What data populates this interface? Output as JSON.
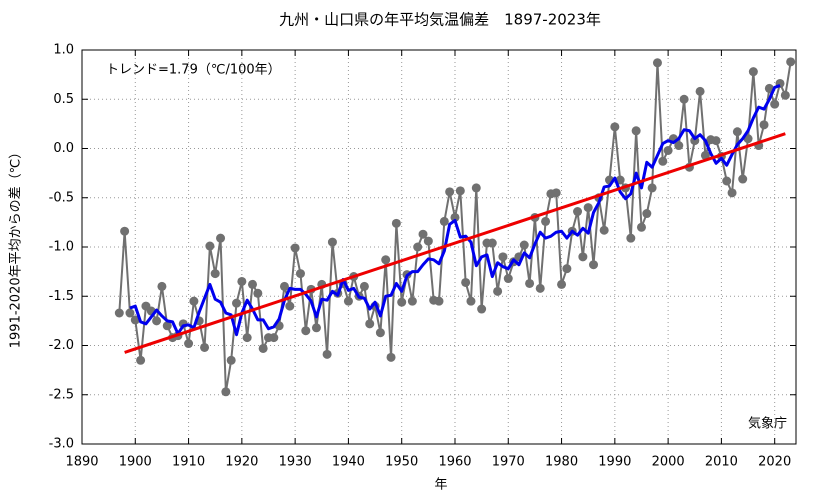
{
  "chart_data": {
    "type": "line",
    "title": "九州・山口県の年平均気温偏差　1897-2023年",
    "xlabel": "年",
    "ylabel": "1991-2020年平均からの差（℃）",
    "annotations": [
      "トレンド=1.79（℃/100年）",
      "気象庁"
    ],
    "xlim": [
      1890,
      2024
    ],
    "ylim": [
      -3.0,
      1.0
    ],
    "xticks": [
      1890,
      1900,
      1910,
      1920,
      1930,
      1940,
      1950,
      1960,
      1970,
      1980,
      1990,
      2000,
      2010,
      2020
    ],
    "yticks": [
      {
        "value": -3,
        "label": "-3.0"
      },
      {
        "value": -2.5,
        "label": "-2.5"
      },
      {
        "value": -2,
        "label": "-2.0"
      },
      {
        "value": -1.5,
        "label": "-1.5"
      },
      {
        "value": -1,
        "label": "-1.0"
      },
      {
        "value": -0.5,
        "label": "-0.5"
      },
      {
        "value": 0,
        "label": "0.0"
      },
      {
        "value": 0.5,
        "label": "0.5"
      },
      {
        "value": 1,
        "label": "1.0"
      }
    ],
    "grid": true,
    "x": [
      1897,
      1898,
      1899,
      1900,
      1901,
      1902,
      1903,
      1904,
      1905,
      1906,
      1907,
      1908,
      1909,
      1910,
      1911,
      1912,
      1913,
      1914,
      1915,
      1916,
      1917,
      1918,
      1919,
      1920,
      1921,
      1922,
      1923,
      1924,
      1925,
      1926,
      1927,
      1928,
      1929,
      1930,
      1931,
      1932,
      1933,
      1934,
      1935,
      1936,
      1937,
      1938,
      1939,
      1940,
      1941,
      1942,
      1943,
      1944,
      1945,
      1946,
      1947,
      1948,
      1949,
      1950,
      1951,
      1952,
      1953,
      1954,
      1955,
      1956,
      1957,
      1958,
      1959,
      1960,
      1961,
      1962,
      1963,
      1964,
      1965,
      1966,
      1967,
      1968,
      1969,
      1970,
      1971,
      1972,
      1973,
      1974,
      1975,
      1976,
      1977,
      1978,
      1979,
      1980,
      1981,
      1982,
      1983,
      1984,
      1985,
      1986,
      1987,
      1988,
      1989,
      1990,
      1991,
      1992,
      1993,
      1994,
      1995,
      1996,
      1997,
      1998,
      1999,
      2000,
      2001,
      2002,
      2003,
      2004,
      2005,
      2006,
      2007,
      2008,
      2009,
      2010,
      2011,
      2012,
      2013,
      2014,
      2015,
      2016,
      2017,
      2018,
      2019,
      2020,
      2021,
      2022,
      2023
    ],
    "series": [
      {
        "color": "#707070",
        "values": [
          -1.67,
          -0.84,
          -1.67,
          -1.74,
          -2.15,
          -1.6,
          -1.65,
          -1.75,
          -1.4,
          -1.8,
          -1.92,
          -1.9,
          -1.78,
          -1.98,
          -1.55,
          -1.75,
          -2.02,
          -0.99,
          -1.27,
          -0.91,
          -2.47,
          -2.15,
          -1.57,
          -1.35,
          -1.92,
          -1.38,
          -1.47,
          -2.03,
          -1.92,
          -1.92,
          -1.8,
          -1.4,
          -1.6,
          -1.01,
          -1.27,
          -1.85,
          -1.43,
          -1.82,
          -1.38,
          -2.09,
          -0.95,
          -1.47,
          -1.37,
          -1.55,
          -1.3,
          -1.5,
          -1.4,
          -1.78,
          -1.6,
          -1.87,
          -1.13,
          -2.12,
          -0.76,
          -1.56,
          -1.28,
          -1.55,
          -1.0,
          -0.87,
          -0.94,
          -1.54,
          -1.55,
          -0.74,
          -0.44,
          -0.7,
          -0.43,
          -1.36,
          -1.55,
          -0.4,
          -1.63,
          -0.96,
          -0.96,
          -1.45,
          -1.1,
          -1.32,
          -1.15,
          -1.1,
          -0.98,
          -1.37,
          -0.7,
          -1.42,
          -0.74,
          -0.46,
          -0.45,
          -1.38,
          -1.22,
          -0.84,
          -0.64,
          -1.1,
          -0.6,
          -1.18,
          -0.5,
          -0.83,
          -0.32,
          0.22,
          -0.32,
          -0.4,
          -0.91,
          0.18,
          -0.8,
          -0.66,
          -0.4,
          0.87,
          -0.13,
          -0.02,
          0.1,
          0.03,
          0.5,
          -0.19,
          0.08,
          0.58,
          -0.07,
          0.09,
          0.08,
          -0.08,
          -0.33,
          -0.45,
          0.17,
          -0.31,
          0.1,
          0.78,
          0.03,
          0.24,
          0.61,
          0.45,
          0.66,
          0.54,
          0.88
        ]
      },
      {
        "color": "#0000ee",
        "values": [
          null,
          null,
          -1.62,
          -1.6,
          -1.76,
          -1.78,
          -1.71,
          -1.64,
          -1.7,
          -1.75,
          -1.76,
          -1.88,
          -1.8,
          -1.79,
          -1.82,
          -1.66,
          -1.52,
          -1.38,
          -1.53,
          -1.56,
          -1.67,
          -1.69,
          -1.89,
          -1.67,
          -1.54,
          -1.63,
          -1.74,
          -1.74,
          -1.83,
          -1.81,
          -1.73,
          -1.54,
          -1.42,
          -1.43,
          -1.43,
          -1.48,
          -1.55,
          -1.71,
          -1.53,
          -1.54,
          -1.45,
          -1.49,
          -1.33,
          -1.44,
          -1.42,
          -1.51,
          -1.52,
          -1.63,
          -1.56,
          -1.7,
          -1.5,
          -1.49,
          -1.37,
          -1.45,
          -1.29,
          -1.25,
          -1.25,
          -1.18,
          -1.12,
          -1.13,
          -1.17,
          -1.04,
          -0.77,
          -0.73,
          -0.9,
          -0.89,
          -0.95,
          -1.19,
          -1.1,
          -1.08,
          -1.3,
          -1.16,
          -1.2,
          -1.22,
          -1.13,
          -1.18,
          -1.06,
          -1.11,
          -0.97,
          -0.85,
          -0.91,
          -0.89,
          -0.85,
          -0.84,
          -0.91,
          -0.84,
          -0.88,
          -0.81,
          -0.86,
          -0.65,
          -0.55,
          -0.39,
          -0.38,
          -0.3,
          -0.44,
          -0.51,
          -0.46,
          -0.25,
          -0.4,
          -0.14,
          -0.19,
          -0.07,
          0.05,
          0.08,
          0.06,
          0.1,
          0.19,
          0.18,
          0.1,
          0.14,
          0.08,
          -0.05,
          -0.15,
          -0.1,
          -0.17,
          -0.06,
          0.04,
          0.1,
          0.18,
          0.31,
          0.42,
          0.4,
          0.5,
          0.62,
          0.64,
          null,
          null
        ]
      }
    ],
    "trend": {
      "color": "#ee0000",
      "x": [
        1898,
        2022
      ],
      "values": [
        -2.07,
        0.15
      ]
    }
  }
}
